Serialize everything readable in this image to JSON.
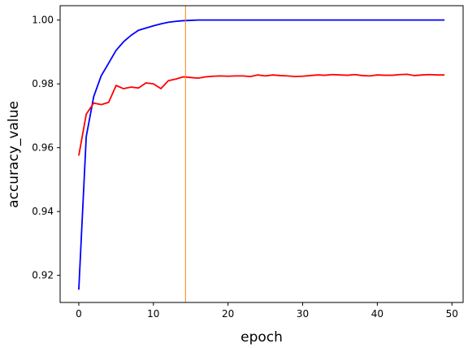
{
  "chart_data": {
    "type": "line",
    "title": "",
    "xlabel": "epoch",
    "ylabel": "accuracy_value",
    "xlim": [
      -2.5,
      51.5
    ],
    "ylim": [
      0.9115,
      1.0045
    ],
    "xticks": [
      0,
      10,
      20,
      30,
      40,
      50
    ],
    "yticks": [
      0.92,
      0.94,
      0.96,
      0.98,
      1.0
    ],
    "xtick_labels": [
      "0",
      "10",
      "20",
      "30",
      "40",
      "50"
    ],
    "ytick_labels": [
      "0.92",
      "0.94",
      "0.96",
      "0.98",
      "1.00"
    ],
    "grid": false,
    "legend": false,
    "vertical_marker": {
      "x": 14.3,
      "color": "#ff7f0e"
    },
    "x": [
      0,
      1,
      2,
      3,
      4,
      5,
      6,
      7,
      8,
      9,
      10,
      11,
      12,
      13,
      14,
      15,
      16,
      17,
      18,
      19,
      20,
      21,
      22,
      23,
      24,
      25,
      26,
      27,
      28,
      29,
      30,
      31,
      32,
      33,
      34,
      35,
      36,
      37,
      38,
      39,
      40,
      41,
      42,
      43,
      44,
      45,
      46,
      47,
      48,
      49
    ],
    "series": [
      {
        "color": "#0000ff",
        "values": [
          0.9155,
          0.9635,
          0.976,
          0.9825,
          0.9865,
          0.9905,
          0.9932,
          0.9952,
          0.9968,
          0.9975,
          0.9982,
          0.9988,
          0.9993,
          0.9996,
          0.9998,
          0.9999,
          1.0,
          1.0,
          1.0,
          1.0,
          1.0,
          1.0,
          1.0,
          1.0,
          1.0,
          1.0,
          1.0,
          1.0,
          1.0,
          1.0,
          1.0,
          1.0,
          1.0,
          1.0,
          1.0,
          1.0,
          1.0,
          1.0,
          1.0,
          1.0,
          1.0,
          1.0,
          1.0,
          1.0,
          1.0,
          1.0,
          1.0,
          1.0,
          1.0,
          1.0
        ]
      },
      {
        "color": "#ff0000",
        "values": [
          0.9575,
          0.9705,
          0.974,
          0.9735,
          0.9742,
          0.9795,
          0.9785,
          0.979,
          0.9787,
          0.9803,
          0.98,
          0.9785,
          0.981,
          0.9815,
          0.9822,
          0.982,
          0.9818,
          0.9822,
          0.9824,
          0.9825,
          0.9824,
          0.9825,
          0.9825,
          0.9823,
          0.9828,
          0.9825,
          0.9828,
          0.9826,
          0.9825,
          0.9823,
          0.9824,
          0.9826,
          0.9828,
          0.9827,
          0.9829,
          0.9828,
          0.9827,
          0.9829,
          0.9826,
          0.9825,
          0.9828,
          0.9827,
          0.9827,
          0.9829,
          0.983,
          0.9826,
          0.9828,
          0.9829,
          0.9828,
          0.9828
        ]
      }
    ]
  }
}
